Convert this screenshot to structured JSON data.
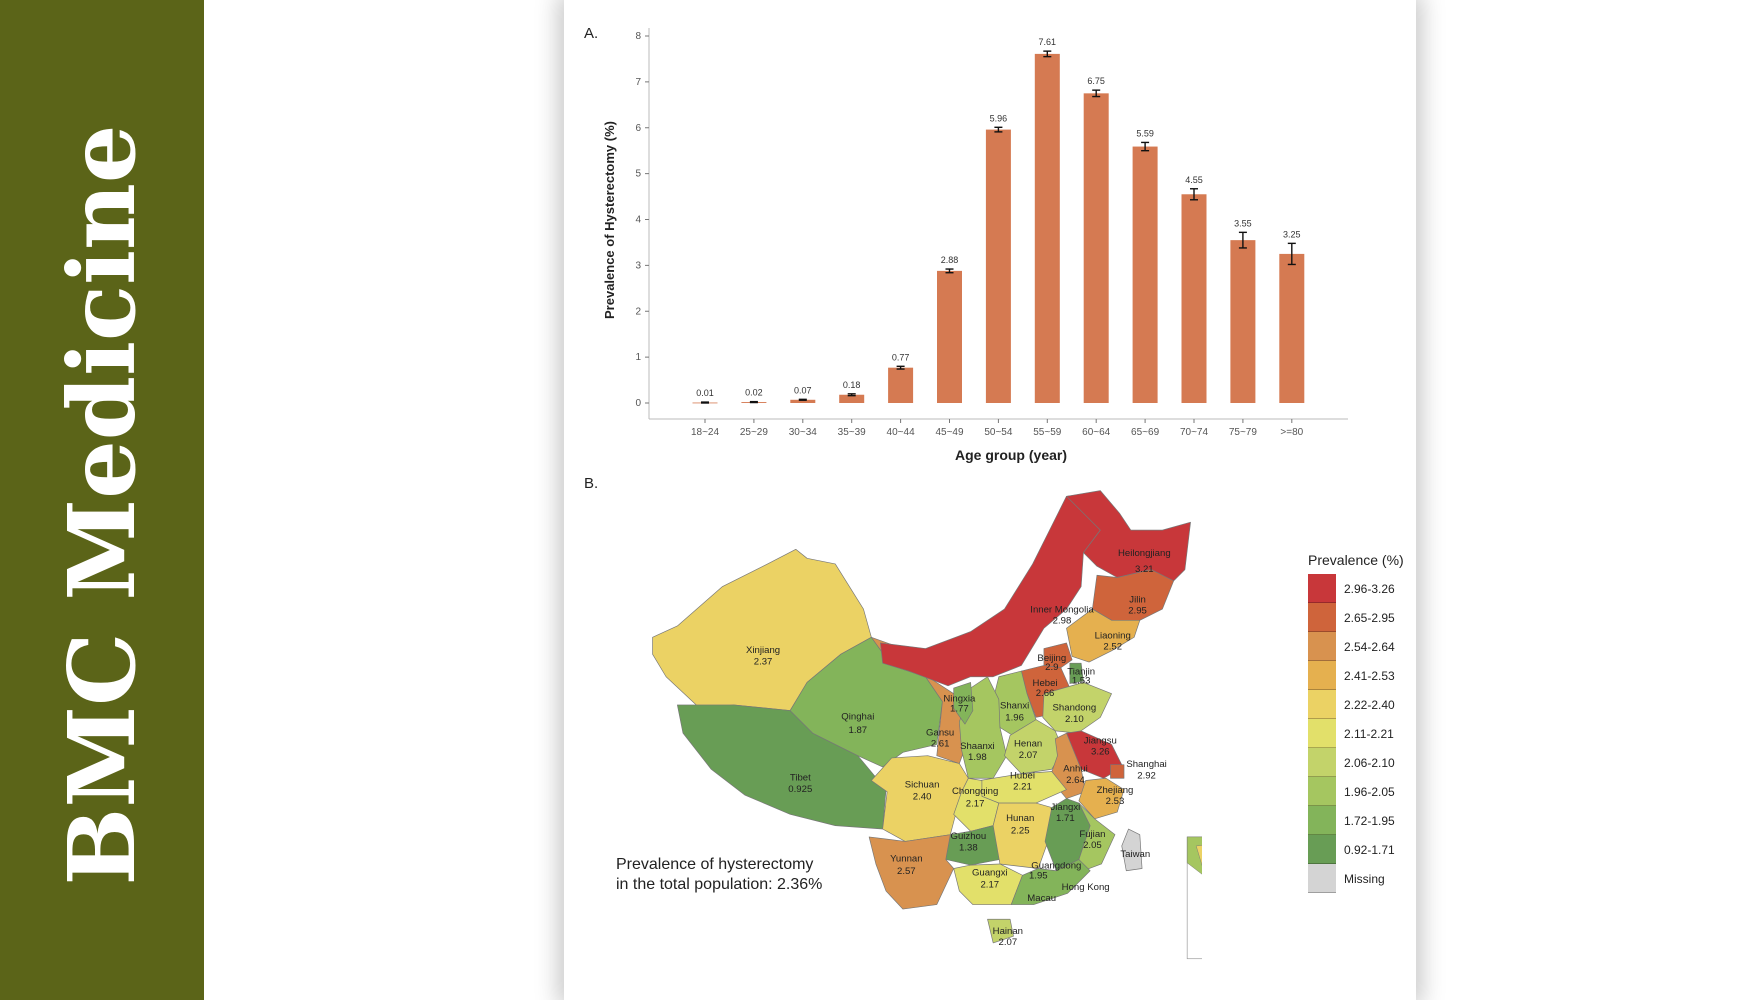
{
  "sidebar": {
    "brand": "BMC Medicine",
    "color": "#5b6418"
  },
  "figure": {
    "panel_a_label": "A.",
    "panel_b_label": "B."
  },
  "chart_data": {
    "type": "bar",
    "title": "",
    "xlabel": "Age group (year)",
    "ylabel": "Prevalence of Hysterectomy (%)",
    "ylim": [
      0,
      8
    ],
    "yticks": [
      0,
      1,
      2,
      3,
      4,
      5,
      6,
      7,
      8
    ],
    "grid": false,
    "bar_color": "#d57a52",
    "categories": [
      "18~24",
      "25~29",
      "30~34",
      "35~39",
      "40~44",
      "45~49",
      "50~54",
      "55~59",
      "60~64",
      "65~69",
      "70~74",
      "75~79",
      ">=80"
    ],
    "values": [
      0.01,
      0.02,
      0.07,
      0.18,
      0.77,
      2.88,
      5.96,
      7.61,
      6.75,
      5.59,
      4.55,
      3.55,
      3.25
    ],
    "value_labels": [
      "0.01",
      "0.02",
      "0.07",
      "0.18",
      "0.77",
      "2.88",
      "5.96",
      "7.61",
      "6.75",
      "5.59",
      "4.55",
      "3.55",
      "3.25"
    ],
    "error": [
      0.01,
      0.01,
      0.01,
      0.02,
      0.03,
      0.04,
      0.05,
      0.06,
      0.07,
      0.09,
      0.12,
      0.17,
      0.23
    ]
  },
  "map": {
    "summary_line1": "Prevalence of hysterectomy",
    "summary_line2": "in the total population: 2.36%",
    "legend_title": "Prevalence (%)",
    "legend": [
      {
        "label": "2.96-3.26",
        "min": 2.96,
        "color": "#c8373a"
      },
      {
        "label": "2.65-2.95",
        "min": 2.65,
        "color": "#cf643b"
      },
      {
        "label": "2.54-2.64",
        "min": 2.54,
        "color": "#d8924f"
      },
      {
        "label": "2.41-2.53",
        "min": 2.41,
        "color": "#e5b04f"
      },
      {
        "label": "2.22-2.40",
        "min": 2.22,
        "color": "#ebd264"
      },
      {
        "label": "2.11-2.21",
        "min": 2.11,
        "color": "#e2e06a"
      },
      {
        "label": "2.06-2.10",
        "min": 2.06,
        "color": "#c3d36a"
      },
      {
        "label": "1.96-2.05",
        "min": 1.96,
        "color": "#a5c660"
      },
      {
        "label": "1.72-1.95",
        "min": 1.72,
        "color": "#83b45a"
      },
      {
        "label": "0.92-1.71",
        "min": 0.92,
        "color": "#689d55"
      },
      {
        "label": "Missing",
        "min": null,
        "color": "#d4d4d4"
      }
    ],
    "provinces": [
      {
        "name": "Xinjiang",
        "value": "2.37"
      },
      {
        "name": "Tibet",
        "value": "0.925"
      },
      {
        "name": "Qinghai",
        "value": "1.87"
      },
      {
        "name": "Gansu",
        "value": "2.61"
      },
      {
        "name": "Inner Mongolia",
        "value": "2.98"
      },
      {
        "name": "Heilongjiang",
        "value": "3.21"
      },
      {
        "name": "Jilin",
        "value": "2.95"
      },
      {
        "name": "Liaoning",
        "value": "2.52"
      },
      {
        "name": "Beijing",
        "value": "2.9"
      },
      {
        "name": "Hebei",
        "value": "2.66"
      },
      {
        "name": "Tianjin",
        "value": "1.53"
      },
      {
        "name": "Shanxi",
        "value": "1.96"
      },
      {
        "name": "Shaanxi",
        "value": "1.98"
      },
      {
        "name": "Ningxia",
        "value": "1.77"
      },
      {
        "name": "Shandong",
        "value": "2.10"
      },
      {
        "name": "Henan",
        "value": "2.07"
      },
      {
        "name": "Jiangsu",
        "value": "3.26"
      },
      {
        "name": "Anhui",
        "value": "2.64"
      },
      {
        "name": "Shanghai",
        "value": "2.92"
      },
      {
        "name": "Zhejiang",
        "value": "2.53"
      },
      {
        "name": "Hubei",
        "value": "2.21"
      },
      {
        "name": "Sichuan",
        "value": "2.40"
      },
      {
        "name": "Chongqing",
        "value": "2.17"
      },
      {
        "name": "Guizhou",
        "value": "1.38"
      },
      {
        "name": "Hunan",
        "value": "2.25"
      },
      {
        "name": "Jiangxi",
        "value": "1.71"
      },
      {
        "name": "Fujian",
        "value": "2.05"
      },
      {
        "name": "Yunnan",
        "value": "2.57"
      },
      {
        "name": "Guangxi",
        "value": "2.17"
      },
      {
        "name": "Guangdong",
        "value": "1.95"
      },
      {
        "name": "Hainan",
        "value": "2.07"
      },
      {
        "name": "Taiwan",
        "value": ""
      },
      {
        "name": "Hong Kong",
        "value": ""
      },
      {
        "name": "Macau",
        "value": ""
      }
    ]
  }
}
